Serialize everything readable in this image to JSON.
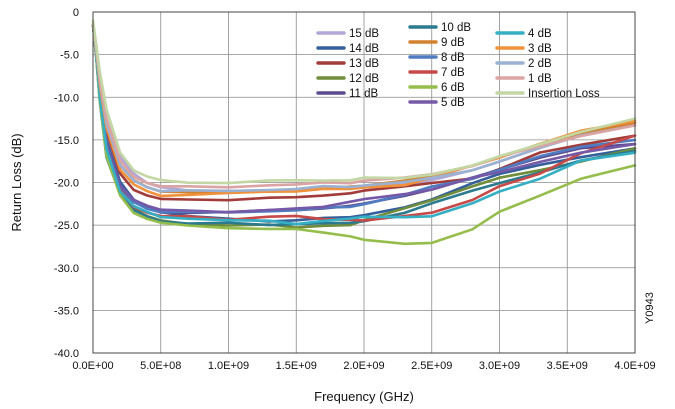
{
  "chart_data": {
    "type": "line",
    "title": "",
    "xlabel": "Frequency (GHz)",
    "ylabel": "Return Loss (dB)",
    "xlim": [
      0,
      4000000000
    ],
    "ylim": [
      -40,
      0
    ],
    "grid": true,
    "legend_position": "top-right",
    "figure_code": "Y0943",
    "x_tick_labels": [
      "0.0E+00",
      "5.0E+08",
      "1.0E+09",
      "1.5E+09",
      "2.0E+09",
      "2.5E+09",
      "3.0E+09",
      "3.5E+09",
      "4.0E+09"
    ],
    "y_tick_labels": [
      "0",
      "-5.0",
      "-10.0",
      "-15.0",
      "-20.0",
      "-25.0",
      "-30.0",
      "-35.0",
      "-40.0"
    ],
    "x": [
      0,
      25000000,
      50000000,
      100000000,
      200000000,
      300000000,
      400000000,
      500000000,
      700000000,
      1000000000,
      1300000000,
      1500000000,
      1700000000,
      1900000000,
      2000000000,
      2300000000,
      2500000000,
      2800000000,
      3000000000,
      3300000000,
      3600000000,
      4000000000
    ],
    "series": [
      {
        "name": "15 dB",
        "color": "#b3a7d6",
        "values": [
          -1.5,
          -4,
          -7.5,
          -12.5,
          -17.0,
          -19.0,
          -20.0,
          -20.5,
          -21.0,
          -21.0,
          -21.0,
          -20.8,
          -20.6,
          -20.6,
          -20.5,
          -20.2,
          -19.8,
          -18.5,
          -17.5,
          -16.0,
          -14.5,
          -13.0
        ]
      },
      {
        "name": "14 dB",
        "color": "#345f9b",
        "values": [
          -1.5,
          -5,
          -9,
          -15,
          -20.0,
          -22.0,
          -23.0,
          -23.5,
          -24.0,
          -24.2,
          -24.5,
          -24.5,
          -24.2,
          -24.0,
          -23.8,
          -23.0,
          -22.0,
          -20.0,
          -19.0,
          -18.0,
          -17.0,
          -16.0
        ]
      },
      {
        "name": "13 dB",
        "color": "#a13c3a",
        "values": [
          -1.5,
          -4.5,
          -8.5,
          -14,
          -19.0,
          -20.8,
          -21.5,
          -22.0,
          -22.0,
          -22.0,
          -21.8,
          -21.8,
          -21.5,
          -21.2,
          -21.0,
          -20.5,
          -20.0,
          -19.5,
          -18.5,
          -16.5,
          -15.5,
          -14.5
        ]
      },
      {
        "name": "12 dB",
        "color": "#6f8d3b",
        "values": [
          -1.5,
          -5.5,
          -10,
          -16.5,
          -21.0,
          -23.0,
          -24.0,
          -24.5,
          -24.8,
          -25.0,
          -25.0,
          -25.3,
          -25.0,
          -25.0,
          -24.5,
          -23.0,
          -22.0,
          -20.5,
          -19.5,
          -18.5,
          -17.5,
          -16.0
        ]
      },
      {
        "name": "11 dB",
        "color": "#5c4a8e",
        "values": [
          -1.5,
          -5,
          -9.5,
          -15.5,
          -20.5,
          -22.3,
          -23.0,
          -23.5,
          -23.5,
          -23.5,
          -23.3,
          -23.2,
          -23.0,
          -22.8,
          -22.5,
          -21.5,
          -20.8,
          -19.5,
          -18.5,
          -17.0,
          -16.0,
          -15.5
        ]
      },
      {
        "name": "10 dB",
        "color": "#2b7a8e",
        "values": [
          -1.5,
          -5.5,
          -10.5,
          -17,
          -21.3,
          -23.3,
          -24.0,
          -24.5,
          -24.8,
          -24.8,
          -25.0,
          -24.8,
          -24.8,
          -24.8,
          -24.5,
          -23.5,
          -22.5,
          -21.0,
          -20.0,
          -18.8,
          -17.5,
          -16.3
        ]
      },
      {
        "name": "9 dB",
        "color": "#d2822e",
        "values": [
          -1.5,
          -4.5,
          -8,
          -13,
          -18.0,
          -19.8,
          -20.5,
          -21.0,
          -21.2,
          -21.2,
          -21.0,
          -21.0,
          -20.8,
          -20.5,
          -20.3,
          -19.8,
          -19.2,
          -18.0,
          -17.0,
          -15.5,
          -14.3,
          -13.0
        ]
      },
      {
        "name": "8 dB",
        "color": "#4f7cc0",
        "values": [
          -1.5,
          -5,
          -9.5,
          -15.5,
          -20.5,
          -22.3,
          -23.0,
          -23.5,
          -23.5,
          -23.5,
          -23.3,
          -23.3,
          -23.0,
          -22.8,
          -22.5,
          -21.5,
          -20.5,
          -19.5,
          -18.5,
          -17.0,
          -15.8,
          -15.0
        ]
      },
      {
        "name": "7 dB",
        "color": "#c74a48",
        "values": [
          -1.5,
          -5,
          -10,
          -16,
          -21.0,
          -22.8,
          -23.5,
          -24.0,
          -24.0,
          -24.3,
          -24.0,
          -24.0,
          -24.3,
          -24.3,
          -24.5,
          -24.0,
          -23.5,
          -22.0,
          -20.5,
          -19.0,
          -16.5,
          -14.5
        ]
      },
      {
        "name": "6 dB",
        "color": "#95bd4c",
        "values": [
          -1.5,
          -5.5,
          -10.5,
          -17,
          -21.5,
          -23.5,
          -24.3,
          -24.8,
          -25.0,
          -25.3,
          -25.5,
          -25.5,
          -25.8,
          -26.3,
          -26.8,
          -27.2,
          -27.0,
          -25.5,
          -23.5,
          -21.5,
          -19.5,
          -18.0
        ]
      },
      {
        "name": "5 dB",
        "color": "#7559a8",
        "values": [
          -1.5,
          -5,
          -9.5,
          -15.5,
          -20.3,
          -22.0,
          -22.8,
          -23.2,
          -23.2,
          -23.5,
          -23.3,
          -23.0,
          -22.8,
          -22.3,
          -22.0,
          -21.3,
          -20.8,
          -19.5,
          -18.8,
          -17.5,
          -16.5,
          -15.5
        ]
      },
      {
        "name": "4 dB",
        "color": "#35afc4",
        "values": [
          -1.5,
          -5,
          -10,
          -16,
          -21.0,
          -22.8,
          -23.5,
          -24.0,
          -24.2,
          -24.5,
          -24.5,
          -24.8,
          -24.5,
          -24.3,
          -24.0,
          -24.0,
          -24.0,
          -22.5,
          -21.0,
          -19.5,
          -17.5,
          -16.5
        ]
      },
      {
        "name": "3 dB",
        "color": "#f0923b",
        "values": [
          -1.5,
          -4.5,
          -8.5,
          -13.5,
          -18.5,
          -20.3,
          -21.0,
          -21.5,
          -21.5,
          -21.3,
          -21.0,
          -21.0,
          -20.8,
          -20.8,
          -20.5,
          -20.3,
          -19.5,
          -18.0,
          -17.0,
          -15.5,
          -14.0,
          -12.8
        ]
      },
      {
        "name": "2 dB",
        "color": "#9bb1d2",
        "values": [
          -1.5,
          -4.5,
          -8,
          -13,
          -18.0,
          -19.8,
          -20.5,
          -21.0,
          -21.0,
          -21.0,
          -20.8,
          -20.8,
          -20.5,
          -20.5,
          -20.3,
          -20.0,
          -19.5,
          -18.5,
          -17.5,
          -16.0,
          -14.5,
          -13.3
        ]
      },
      {
        "name": "1 dB",
        "color": "#dba4a4",
        "values": [
          -1.5,
          -4.5,
          -8,
          -12.5,
          -17.5,
          -19.3,
          -20.0,
          -20.5,
          -20.5,
          -20.5,
          -20.3,
          -20.3,
          -20.0,
          -20.0,
          -19.8,
          -19.5,
          -19.0,
          -18.0,
          -17.0,
          -15.8,
          -14.5,
          -13.3
        ]
      },
      {
        "name": "Insertion Loss",
        "color": "#c2d7a4",
        "values": [
          -1.0,
          -4,
          -7,
          -11.5,
          -16.5,
          -18.5,
          -19.3,
          -19.8,
          -20.0,
          -20.0,
          -19.8,
          -19.8,
          -19.7,
          -19.7,
          -19.5,
          -19.5,
          -19.0,
          -18.0,
          -17.0,
          -15.5,
          -14.0,
          -12.5
        ]
      }
    ]
  }
}
